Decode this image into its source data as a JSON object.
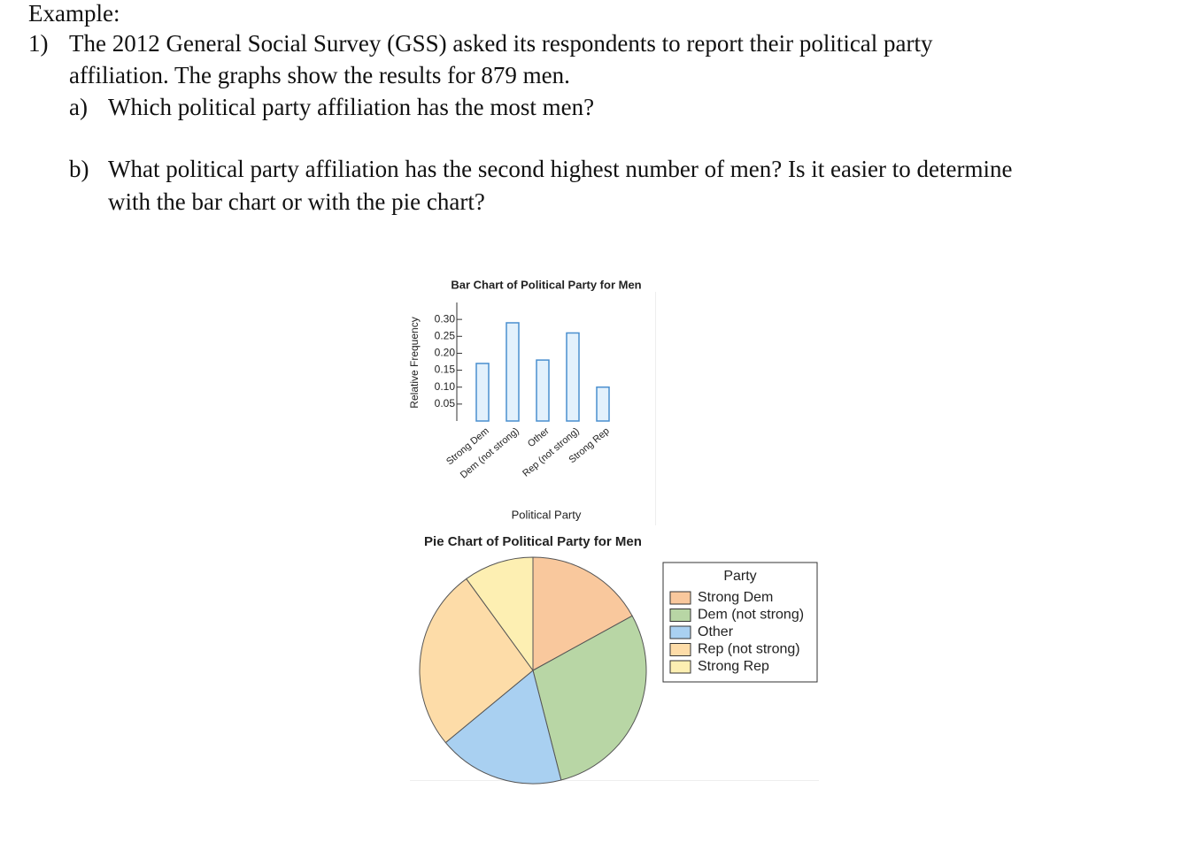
{
  "document": {
    "heading": "Example:",
    "question": {
      "number": "1)",
      "lines": [
        "The 2012 General Social Survey (GSS) asked its respondents to report their political party",
        "affiliation. The graphs show the results for 879 men."
      ]
    },
    "parts": [
      {
        "label": "a)",
        "lines": [
          "Which political party affiliation has the most men?"
        ]
      },
      {
        "label": "b)",
        "lines": [
          "What political party affiliation has the second highest number of men? Is it easier to determine",
          "with the bar chart or with the pie chart?"
        ]
      }
    ]
  },
  "chart_data": [
    {
      "type": "bar",
      "title": "Bar Chart of Political Party for Men",
      "categories": [
        "Strong Dem",
        "Dem (not strong)",
        "Other",
        "Rep (not strong)",
        "Strong Rep"
      ],
      "values": [
        0.17,
        0.29,
        0.18,
        0.26,
        0.1
      ],
      "color": "#e3f1fc",
      "edge_color": "#4a8fcf",
      "ylabel": "Relative Frequency",
      "xlabel": "Political Party",
      "ylim": [
        0,
        0.35
      ],
      "yticks": [
        {
          "value": 0.3,
          "label": "0.30"
        },
        0.25,
        {
          "value": 0.2,
          "label": "0.20"
        },
        0.15,
        {
          "value": 0.1,
          "label": "0.10"
        },
        0.05
      ]
    },
    {
      "type": "pie",
      "title": "Pie Chart of Political Party for Men",
      "categories": [
        "Strong Dem",
        "Dem (not strong)",
        "Other",
        "Rep (not strong)",
        "Strong Rep"
      ],
      "values": [
        0.17,
        0.29,
        0.18,
        0.26,
        0.1
      ],
      "colors": [
        "#f9c89d",
        "#b8d6a5",
        "#a9d0f1",
        "#fddca8",
        "#fdefb2"
      ],
      "legend_title": "Party",
      "legend": "right"
    }
  ]
}
